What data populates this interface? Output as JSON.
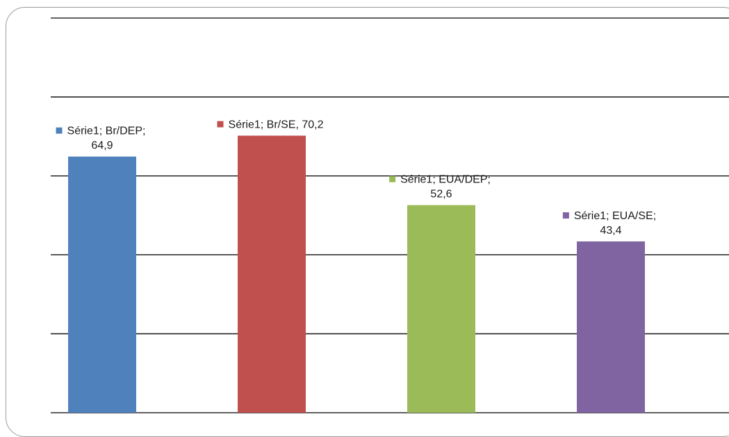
{
  "chart_data": {
    "type": "bar",
    "categories": [
      "Br/DEP",
      "Br/SE",
      "EUA/DEP",
      "EUA/SE"
    ],
    "series": [
      {
        "name": "Série1",
        "values": [
          64.9,
          70.2,
          52.6,
          43.4
        ],
        "colors": [
          "#4f81bd",
          "#c0504d",
          "#9bbb59",
          "#8064a2"
        ]
      }
    ],
    "data_labels": [
      [
        "Série1; Br/DEP;",
        "64,9"
      ],
      [
        "Série1; Br/SE, 70,2"
      ],
      [
        "Série1; EUA/DEP;",
        "52,6"
      ],
      [
        "Série1; EUA/SE;",
        "43,4"
      ]
    ],
    "ylim": [
      0,
      100
    ],
    "grid": true,
    "legend": "none",
    "title": "",
    "xlabel": "",
    "ylabel": ""
  }
}
